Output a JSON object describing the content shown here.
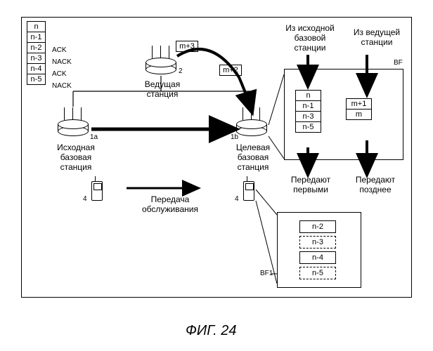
{
  "figure_caption": "ФИГ. 24",
  "ack_table": {
    "rows": [
      {
        "v": "n",
        "s": ""
      },
      {
        "v": "n-1",
        "s": ""
      },
      {
        "v": "n-2",
        "s": "ACK"
      },
      {
        "v": "n-3",
        "s": "NACK"
      },
      {
        "v": "n-4",
        "s": "ACK"
      },
      {
        "v": "n-5",
        "s": "NACK"
      }
    ]
  },
  "stations": {
    "leading": {
      "label": "Ведущая\nстанция",
      "id": "2"
    },
    "source": {
      "label": "Исходная\nбазовая\nстанция",
      "id": "1a"
    },
    "target": {
      "label": "Целевая\nбазовая\nстанция",
      "id": "1b"
    }
  },
  "packets": {
    "p1": "m+3",
    "p2": "m+2"
  },
  "labels": {
    "from_source": "Из исходной\nбазовой\nстанции",
    "from_leading": "Из ведущей\nстанции",
    "handover": "Передача\nобслуживания",
    "tx_first": "Передают\nпервыми",
    "tx_later": "Передают\nпозднее",
    "bf": "BF",
    "bf1": "BF1"
  },
  "mobile_id": "4",
  "bf_box": {
    "left_col": [
      "n",
      "n-1",
      "n-3",
      "n-5"
    ],
    "right_col": [
      "m+1",
      "m"
    ]
  },
  "bf1_box": {
    "rows": [
      {
        "v": "n-2",
        "dashed": false
      },
      {
        "v": "n-3",
        "dashed": true
      },
      {
        "v": "n-4",
        "dashed": false
      },
      {
        "v": "n-5",
        "dashed": true
      }
    ]
  },
  "colors": {
    "line": "#000000",
    "bg": "#ffffff"
  }
}
